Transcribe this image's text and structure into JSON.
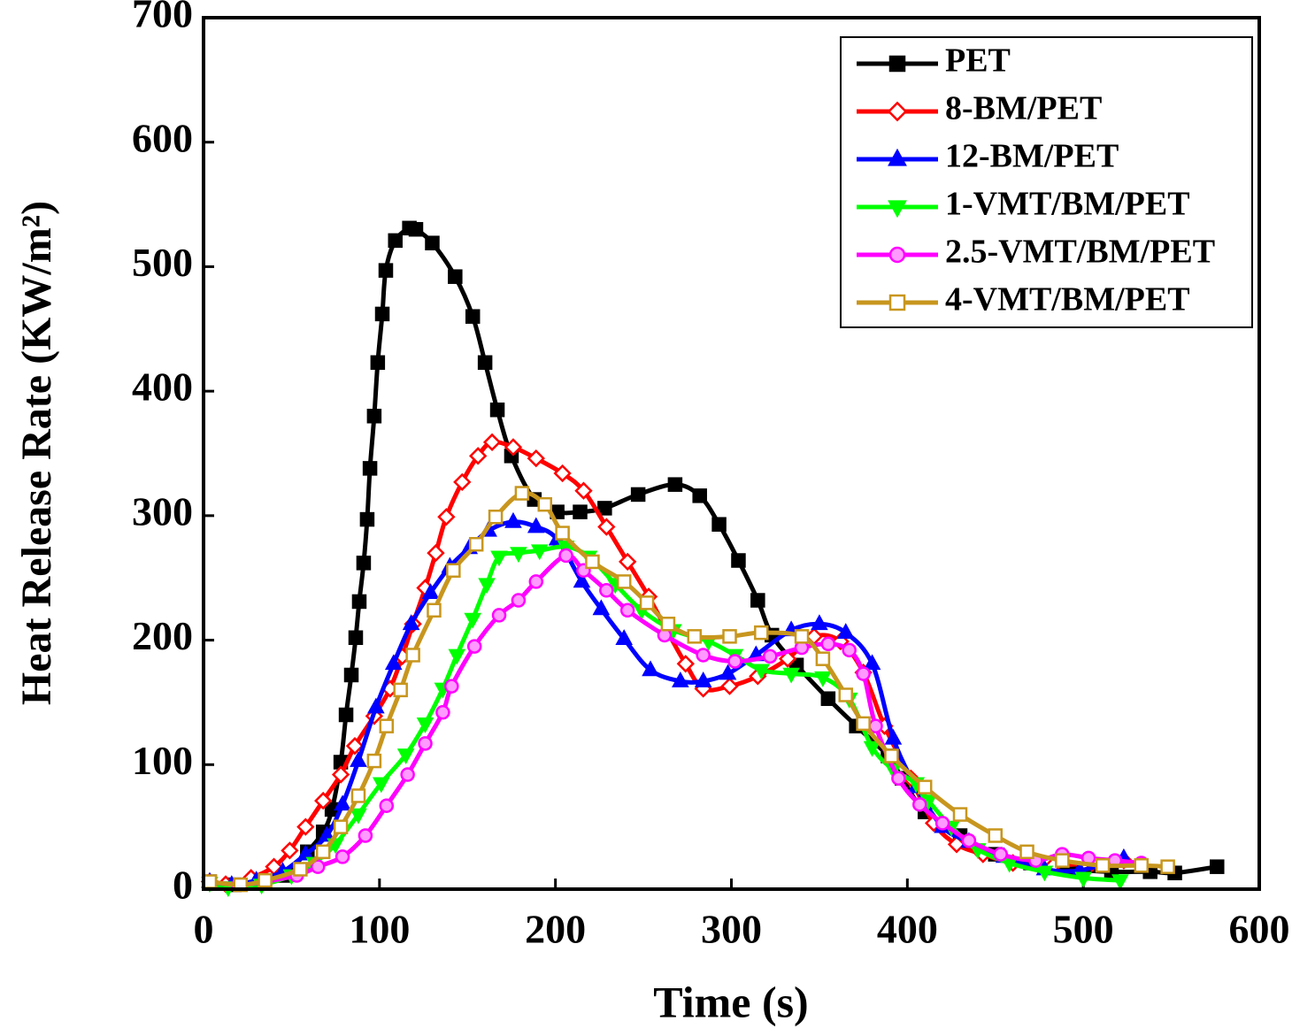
{
  "chart_data": {
    "type": "line",
    "xlabel": "Time (s)",
    "ylabel": "Heat Release Rate (KW/m²)",
    "xlim": [
      0,
      600
    ],
    "xticks": [
      0,
      100,
      200,
      300,
      400,
      500,
      600
    ],
    "ylim": [
      0,
      700
    ],
    "yticks": [
      0,
      100,
      200,
      300,
      400,
      500,
      600,
      700
    ],
    "legend": "upper right",
    "series": [
      {
        "name": "PET",
        "color": "#000000",
        "marker": "square",
        "x": [
          3.5,
          17.6,
          33,
          45,
          59,
          68,
          73,
          78,
          81,
          84,
          86.5,
          88.5,
          91,
          93,
          94.6,
          97,
          99,
          101.6,
          103.6,
          109,
          117,
          120.7,
          130,
          143,
          153,
          160,
          167,
          175,
          188,
          201,
          214,
          228,
          247,
          268,
          282,
          293,
          304,
          315,
          323,
          337,
          355,
          371,
          389,
          397,
          410,
          430,
          450,
          470,
          493,
          516,
          538,
          552,
          576
        ],
        "values": [
          6,
          3.5,
          5,
          11,
          30,
          46,
          64,
          102,
          140,
          172,
          202,
          231,
          262,
          297,
          338,
          380,
          423,
          462,
          497,
          521,
          531,
          530,
          519,
          492,
          460,
          423,
          385,
          348,
          313,
          303,
          303,
          306,
          317,
          325,
          316,
          293,
          264,
          232,
          204,
          180,
          153,
          131,
          107,
          89,
          62,
          43,
          28,
          21,
          16,
          14,
          14,
          13,
          18
        ]
      },
      {
        "name": "8-BM/PET",
        "color": "#ff0000",
        "marker": "diamond-open",
        "x": [
          3.5,
          12.6,
          27,
          40,
          49,
          58,
          68,
          78,
          86,
          97,
          106,
          113,
          119,
          126,
          132,
          138,
          147,
          156,
          164,
          176,
          189,
          204,
          216,
          229,
          241,
          253,
          264,
          274,
          284,
          299,
          315,
          332,
          347,
          362,
          375,
          387,
          402,
          415,
          428,
          443,
          460,
          483,
          505,
          523
        ],
        "values": [
          6,
          4,
          9,
          18,
          31,
          50,
          71,
          92,
          115,
          139,
          161,
          187,
          213,
          242,
          270,
          299,
          327,
          348,
          359,
          355,
          346,
          334,
          320,
          291,
          263,
          235,
          206,
          181,
          161,
          163,
          171,
          185,
          203,
          199,
          174,
          131,
          89,
          53,
          36,
          28,
          21,
          19,
          21,
          23
        ]
      },
      {
        "name": "12-BM/PET",
        "color": "#0000ff",
        "marker": "triangle",
        "x": [
          3.5,
          16,
          30,
          45,
          58,
          70,
          79,
          88,
          98,
          108,
          118,
          129,
          140,
          151,
          162,
          176,
          189,
          201,
          215,
          226,
          239,
          254,
          271,
          284,
          298,
          314,
          334,
          350,
          365,
          380,
          392,
          405,
          420,
          435,
          455,
          478,
          498,
          523
        ],
        "values": [
          6,
          3.5,
          7,
          14,
          28,
          43,
          68,
          103,
          146,
          181,
          213,
          238,
          259,
          274,
          288,
          295,
          291,
          281,
          247,
          225,
          201,
          176,
          167,
          167,
          173,
          188,
          208,
          213,
          206,
          181,
          121,
          82,
          50,
          38,
          26,
          16,
          15,
          25
        ]
      },
      {
        "name": "1-VMT/BM/PET",
        "color": "#00ff00",
        "marker": "triangle-down",
        "x": [
          3.5,
          14,
          33,
          50,
          63,
          75,
          88,
          101,
          115,
          126,
          136,
          144,
          153,
          161,
          168,
          179,
          191,
          206,
          219,
          234,
          249,
          267,
          287,
          302,
          317,
          334,
          352,
          367,
          380,
          392,
          405,
          412,
          425,
          440,
          458,
          478,
          500,
          521
        ],
        "values": [
          5,
          1.4,
          3.5,
          11,
          21,
          36,
          60,
          85,
          108,
          133,
          161,
          188,
          217,
          245,
          267,
          270,
          272,
          275,
          267,
          245,
          224,
          208,
          199,
          188,
          176,
          173,
          170,
          153,
          114,
          96,
          85,
          71,
          50,
          32,
          21,
          14,
          9,
          7
        ]
      },
      {
        "name": "2.5-VMT/BM/PET",
        "color": "#ff00ff",
        "marker": "circle",
        "x": [
          3.5,
          20,
          35,
          53,
          65,
          79,
          92,
          104,
          116,
          126,
          136,
          141,
          154,
          168,
          179,
          189,
          206,
          216,
          229,
          241,
          262,
          284,
          302,
          322,
          340,
          355,
          367,
          375,
          382,
          395,
          407,
          420,
          435,
          453,
          473,
          488,
          503,
          518,
          533
        ],
        "values": [
          6,
          3.5,
          6,
          11,
          18,
          26,
          43,
          67,
          92,
          117,
          142,
          163,
          195,
          220,
          232,
          247,
          268,
          256,
          240,
          224,
          204,
          188,
          183,
          187,
          194,
          197,
          192,
          173,
          131,
          89,
          68,
          53,
          39,
          28,
          23,
          28,
          25,
          23,
          21
        ]
      },
      {
        "name": "4-VMT/BM/PET",
        "color": "#c8961e",
        "marker": "square-open",
        "x": [
          3.5,
          21,
          35,
          55,
          68,
          78,
          88,
          97,
          104,
          112,
          119,
          131,
          142,
          155,
          166,
          181,
          194,
          204,
          221,
          239,
          252,
          264,
          279,
          299,
          317,
          340,
          352,
          365,
          375,
          391,
          410,
          430,
          450,
          468,
          488,
          511,
          533,
          548
        ],
        "values": [
          6,
          3.5,
          7,
          16,
          30,
          50,
          75,
          103,
          131,
          160,
          188,
          224,
          256,
          277,
          299,
          318,
          309,
          286,
          263,
          247,
          230,
          213,
          203,
          203,
          206,
          203,
          185,
          156,
          133,
          107,
          82,
          60,
          43,
          30,
          23,
          19,
          19,
          18
        ]
      }
    ]
  }
}
